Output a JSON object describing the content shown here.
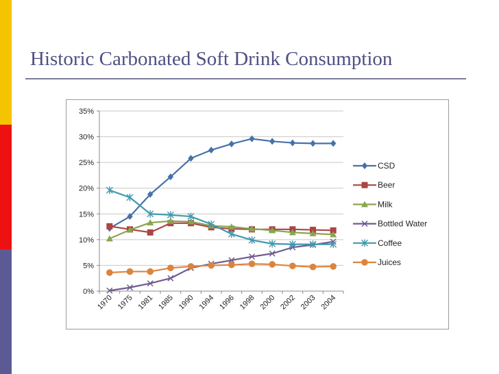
{
  "slide": {
    "title": "Historic Carbonated Soft Drink Consumption"
  },
  "chart_data": {
    "type": "line",
    "title": "",
    "xlabel": "",
    "ylabel": "",
    "categories": [
      "1970",
      "1975",
      "1981",
      "1985",
      "1990",
      "1994",
      "1996",
      "1998",
      "2000",
      "2002",
      "2003",
      "2004"
    ],
    "y_tick_labels": [
      "0%",
      "5%",
      "10%",
      "15%",
      "20%",
      "25%",
      "30%",
      "35%"
    ],
    "ylim": [
      0,
      35
    ],
    "y_unit": "%",
    "grid": "horizontal",
    "legend_position": "right",
    "series": [
      {
        "name": "CSD",
        "color": "#4572a7",
        "marker": "diamond",
        "values": [
          12.2,
          14.5,
          18.8,
          22.2,
          25.8,
          27.4,
          28.6,
          29.6,
          29.1,
          28.8,
          28.7,
          28.7
        ]
      },
      {
        "name": "Beer",
        "color": "#aa4643",
        "marker": "square",
        "values": [
          12.6,
          12.0,
          11.4,
          13.2,
          13.2,
          12.4,
          12.1,
          12.0,
          12.0,
          12.0,
          11.9,
          11.8
        ]
      },
      {
        "name": "Milk",
        "color": "#89a54e",
        "marker": "triangle",
        "values": [
          10.2,
          11.9,
          13.3,
          13.6,
          13.5,
          12.7,
          12.5,
          12.1,
          11.8,
          11.4,
          11.2,
          11.0
        ]
      },
      {
        "name": "Bottled Water",
        "color": "#71588f",
        "marker": "x",
        "values": [
          0.1,
          0.7,
          1.5,
          2.5,
          4.5,
          5.3,
          6.0,
          6.7,
          7.3,
          8.5,
          9.0,
          9.6
        ]
      },
      {
        "name": "Coffee",
        "color": "#4198af",
        "marker": "star",
        "values": [
          19.6,
          18.2,
          15.0,
          14.8,
          14.5,
          13.0,
          11.1,
          9.9,
          9.2,
          9.1,
          9.1,
          9.1
        ]
      },
      {
        "name": "Juices",
        "color": "#db843d",
        "marker": "circle",
        "values": [
          3.6,
          3.8,
          3.8,
          4.5,
          4.8,
          5.0,
          5.1,
          5.3,
          5.2,
          4.9,
          4.7,
          4.8
        ]
      }
    ]
  }
}
